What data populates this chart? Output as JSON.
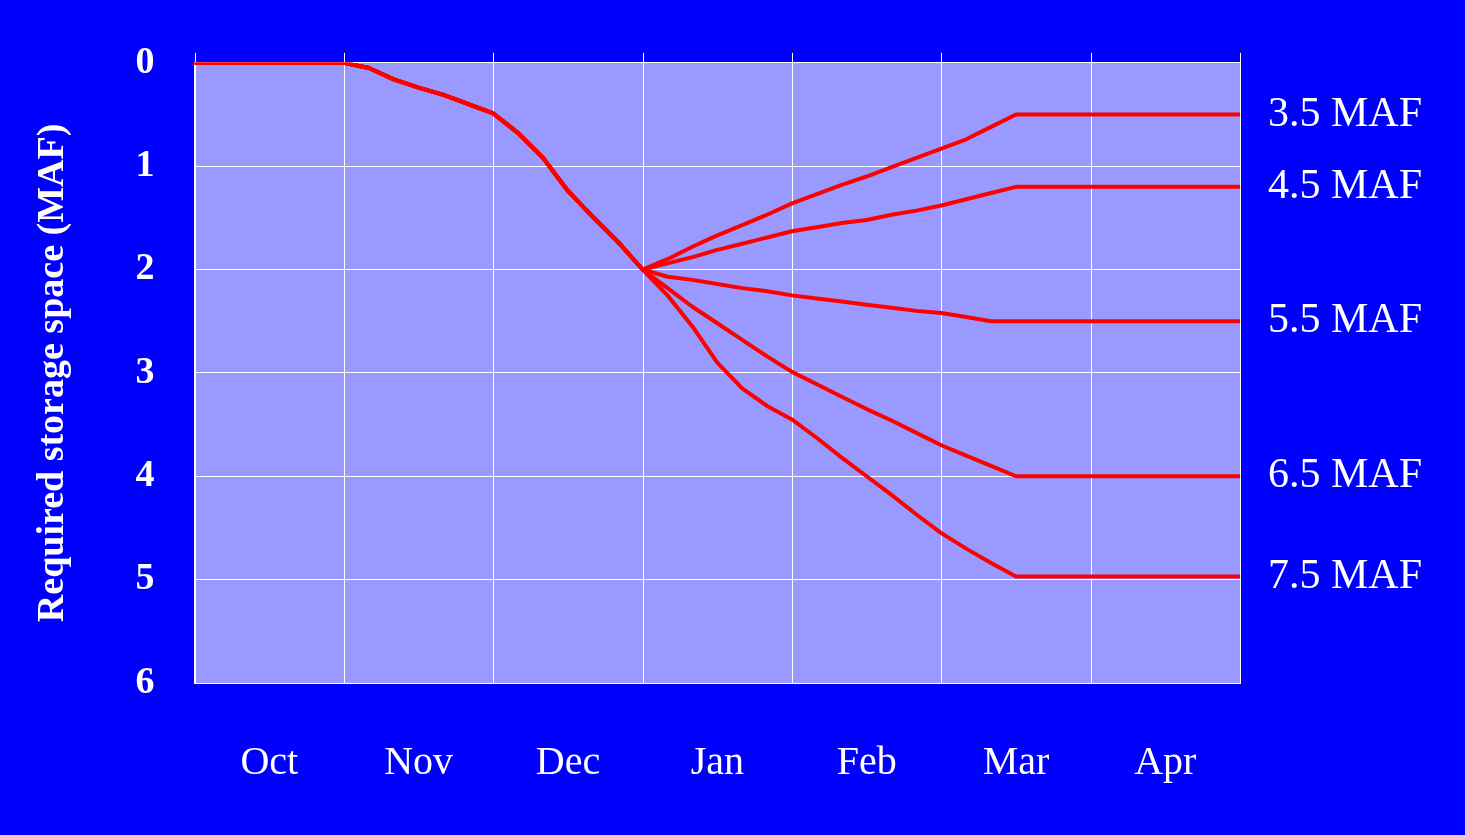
{
  "chart_data": {
    "type": "line",
    "ylabel": "Required storage space (MAF)",
    "categories": [
      null,
      null,
      null,
      "Oct",
      null,
      null,
      null,
      null,
      null,
      "Nov",
      null,
      null,
      null,
      null,
      null,
      "Dec",
      null,
      null,
      null,
      null,
      null,
      "Jan",
      null,
      null,
      null,
      null,
      null,
      "Feb",
      null,
      null,
      null,
      null,
      null,
      "Mar",
      null,
      null,
      null,
      null,
      null,
      "Apr",
      null,
      null,
      null
    ],
    "ylim": [
      6,
      0
    ],
    "yticks": [
      0,
      1,
      2,
      3,
      4,
      5,
      6
    ],
    "grid": true,
    "legend": false,
    "marker": "none",
    "line_style": "solid",
    "series": [
      {
        "name": "3.5 MAF",
        "color": "#ff0000",
        "values": [
          0,
          0,
          0,
          0,
          0,
          0,
          0,
          0.05,
          0.16,
          0.24,
          0.31,
          0.4,
          0.49,
          0.68,
          0.92,
          1.24,
          1.49,
          1.73,
          2.0,
          1.9,
          1.78,
          1.67,
          1.57,
          1.47,
          1.36,
          1.27,
          1.18,
          1.1,
          1.01,
          0.92,
          0.83,
          0.74,
          0.62,
          0.5,
          0.5,
          0.5,
          0.5,
          0.5,
          0.5,
          0.5,
          0.5,
          0.5,
          0.5
        ]
      },
      {
        "name": "4.5 MAF",
        "color": "#ff0000",
        "values": [
          0,
          0,
          0,
          0,
          0,
          0,
          0,
          0.05,
          0.16,
          0.24,
          0.31,
          0.4,
          0.49,
          0.68,
          0.92,
          1.24,
          1.49,
          1.73,
          2.0,
          1.94,
          1.88,
          1.81,
          1.75,
          1.69,
          1.63,
          1.59,
          1.55,
          1.52,
          1.47,
          1.43,
          1.38,
          1.32,
          1.26,
          1.2,
          1.2,
          1.2,
          1.2,
          1.2,
          1.2,
          1.2,
          1.2,
          1.2,
          1.2
        ]
      },
      {
        "name": "5.5 MAF",
        "color": "#ff0000",
        "values": [
          0,
          0,
          0,
          0,
          0,
          0,
          0,
          0.05,
          0.16,
          0.24,
          0.31,
          0.4,
          0.49,
          0.68,
          0.92,
          1.24,
          1.49,
          1.73,
          2.0,
          2.07,
          2.1,
          2.14,
          2.18,
          2.21,
          2.25,
          2.28,
          2.31,
          2.34,
          2.37,
          2.4,
          2.42,
          2.46,
          2.5,
          2.5,
          2.5,
          2.5,
          2.5,
          2.5,
          2.5,
          2.5,
          2.5,
          2.5,
          2.5
        ]
      },
      {
        "name": "6.5 MAF",
        "color": "#ff0000",
        "values": [
          0,
          0,
          0,
          0,
          0,
          0,
          0,
          0.05,
          0.16,
          0.24,
          0.31,
          0.4,
          0.49,
          0.68,
          0.92,
          1.24,
          1.49,
          1.73,
          2.0,
          2.18,
          2.36,
          2.52,
          2.68,
          2.84,
          2.99,
          3.11,
          3.23,
          3.35,
          3.46,
          3.58,
          3.7,
          3.8,
          3.9,
          4.0,
          4.0,
          4.0,
          4.0,
          4.0,
          4.0,
          4.0,
          4.0,
          4.0,
          4.0
        ]
      },
      {
        "name": "7.5 MAF",
        "color": "#ff0000",
        "values": [
          0,
          0,
          0,
          0,
          0,
          0,
          0,
          0.05,
          0.16,
          0.24,
          0.31,
          0.4,
          0.49,
          0.68,
          0.92,
          1.24,
          1.49,
          1.73,
          2.0,
          2.25,
          2.55,
          2.9,
          3.15,
          3.32,
          3.45,
          3.63,
          3.82,
          4.0,
          4.18,
          4.37,
          4.55,
          4.7,
          4.84,
          4.97,
          4.97,
          4.97,
          4.97,
          4.97,
          4.97,
          4.97,
          4.97,
          4.97,
          4.97
        ]
      }
    ]
  }
}
